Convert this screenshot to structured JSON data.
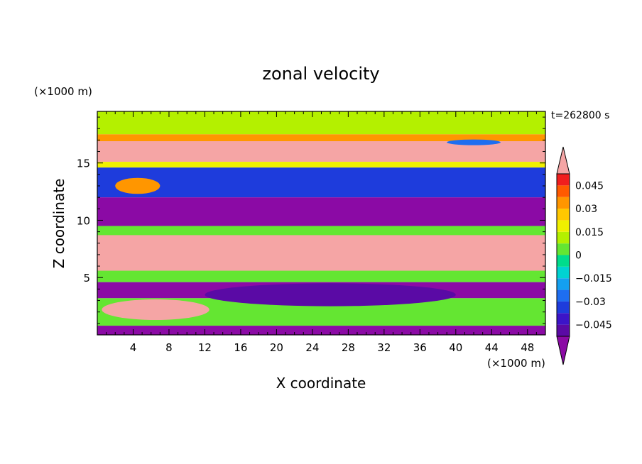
{
  "chart_data": {
    "type": "heatmap",
    "title": "zonal velocity",
    "xlabel": "X coordinate",
    "ylabel": "Z coordinate",
    "x_units": "(×1000 m)",
    "y_units": "(×1000 m)",
    "time_label": "t=262800 s",
    "xlim": [
      0,
      50
    ],
    "ylim": [
      0,
      19.5
    ],
    "x_ticks": [
      4,
      8,
      12,
      16,
      20,
      24,
      28,
      32,
      36,
      40,
      44,
      48
    ],
    "y_ticks": [
      5,
      10,
      15
    ],
    "colorbar": {
      "labels": [
        "0.045",
        "0.03",
        "0.015",
        "0",
        "−0.015",
        "−0.03",
        "−0.045"
      ],
      "label_values": [
        0.045,
        0.03,
        0.015,
        0,
        -0.015,
        -0.03,
        -0.045
      ],
      "levels": [
        -0.0525,
        -0.045,
        -0.0375,
        -0.03,
        -0.0225,
        -0.015,
        -0.0075,
        0,
        0.0075,
        0.015,
        0.0225,
        0.03,
        0.0375,
        0.045,
        0.0525
      ],
      "colors": [
        "#8b0aa5",
        "#5a0aa5",
        "#3c14c8",
        "#1e3cdc",
        "#1e6ef0",
        "#14a0f0",
        "#00d2d2",
        "#00dc8c",
        "#64e632",
        "#b4f000",
        "#f0f000",
        "#ffc800",
        "#ff9600",
        "#ff5a00",
        "#f01e1e",
        "#f5a5a5"
      ],
      "under_color": "#8b0aa5",
      "over_color": "#f5a5a5"
    },
    "bands": [
      {
        "z_top": 19.5,
        "z_bottom": 17.5,
        "value": 0.01
      },
      {
        "z_top": 17.5,
        "z_bottom": 16.9,
        "value": 0.037
      },
      {
        "z_top": 16.9,
        "z_bottom": 15.1,
        "value": 0.06
      },
      {
        "z_top": 15.1,
        "z_bottom": 14.6,
        "value": 0.02
      },
      {
        "z_top": 14.6,
        "z_bottom": 12.0,
        "value": -0.035
      },
      {
        "z_top": 12.0,
        "z_bottom": 9.5,
        "value": -0.06
      },
      {
        "z_top": 9.5,
        "z_bottom": 8.7,
        "value": 0.005
      },
      {
        "z_top": 8.7,
        "z_bottom": 5.6,
        "value": 0.06
      },
      {
        "z_top": 5.6,
        "z_bottom": 4.6,
        "value": 0.0
      },
      {
        "z_top": 4.6,
        "z_bottom": 3.2,
        "value": -0.055
      },
      {
        "z_top": 3.2,
        "z_bottom": 0.8,
        "value": 0.0
      },
      {
        "z_top": 0.8,
        "z_bottom": 0.0,
        "value": -0.06
      }
    ],
    "features": [
      {
        "x": 4.5,
        "z": 13.0,
        "rx": 2.5,
        "rz": 0.7,
        "value": 0.035
      },
      {
        "x": 6.5,
        "z": 2.2,
        "rx": 6.0,
        "rz": 0.9,
        "value": 0.06
      },
      {
        "x": 42.0,
        "z": 16.8,
        "rx": 3.0,
        "rz": 0.25,
        "value": -0.03
      },
      {
        "x": 26.0,
        "z": 3.5,
        "rx": 14.0,
        "rz": 1.0,
        "value": -0.05
      }
    ]
  }
}
